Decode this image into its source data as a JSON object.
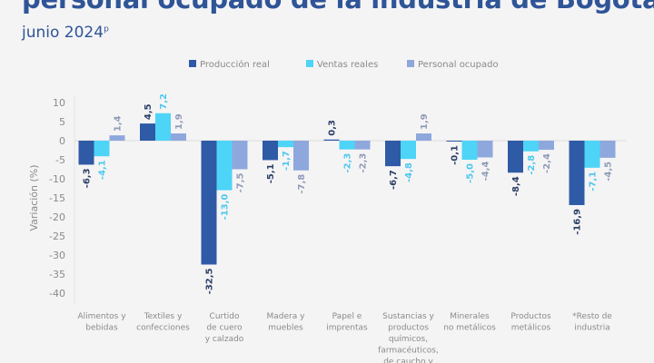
{
  "chart_data": {
    "type": "bar",
    "title": "personal ocupado de la industria de Bogotá",
    "subtitle": "junio 2024",
    "subtitle_sup": "p",
    "ylabel": "Variación (%)",
    "xlabel": "",
    "ylim": [
      -40,
      10
    ],
    "yticks": [
      10,
      5,
      0,
      -5,
      -10,
      -15,
      -20,
      -25,
      -30,
      -35,
      -40
    ],
    "grid": false,
    "legend_position": "top-center",
    "categories": [
      [
        "Alimentos y",
        "bebidas"
      ],
      [
        "Textiles y",
        "confecciones"
      ],
      [
        "Curtido",
        "de cuero",
        "y calzado"
      ],
      [
        "Madera y",
        "muebles"
      ],
      [
        "Papel e",
        "imprentas"
      ],
      [
        "Sustancias y",
        "productos",
        "químicos,",
        "farmacéuticos,",
        "de caucho y"
      ],
      [
        "Minerales",
        "no metálicos"
      ],
      [
        "Productos",
        "metálicos"
      ],
      [
        "*Resto de",
        "industria"
      ]
    ],
    "series": [
      {
        "name": "Producción real",
        "color": "#2f5aa6",
        "label_color": "#2b3f66",
        "values": [
          -6.3,
          4.5,
          -32.5,
          -5.1,
          0.3,
          -6.7,
          -0.1,
          -8.4,
          -16.9
        ]
      },
      {
        "name": "Ventas reales",
        "color": "#4dd4f7",
        "label_color": "#4dc8ee",
        "values": [
          -4.1,
          7.2,
          -13.0,
          -1.7,
          -2.3,
          -4.8,
          -5.0,
          -2.8,
          -7.1
        ]
      },
      {
        "name": "Personal ocupado",
        "color": "#8ea8dd",
        "label_color": "#8f9bb8",
        "values": [
          1.4,
          1.9,
          -7.5,
          -7.8,
          -2.3,
          1.9,
          -4.4,
          -2.4,
          -4.5
        ]
      }
    ]
  }
}
